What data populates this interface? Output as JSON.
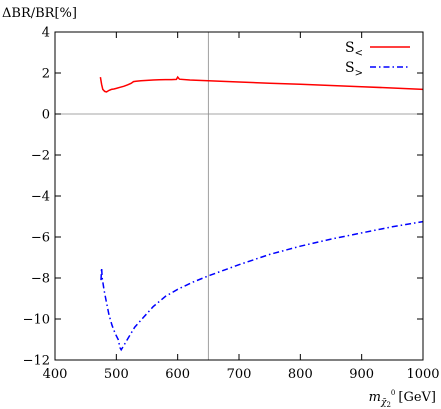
{
  "chart_data": {
    "type": "line",
    "ylabel": "ΔBR/BR[%]",
    "xlabel": {
      "base": "m",
      "sub": "χ̃",
      "subsub": "2",
      "sup": "0",
      "unit": "[GeV]"
    },
    "xlim": [
      400,
      1000
    ],
    "ylim": [
      -12,
      4
    ],
    "xticks": [
      400,
      500,
      600,
      700,
      800,
      900,
      1000
    ],
    "yticks": [
      -12,
      -10,
      -8,
      -6,
      -4,
      -2,
      0,
      2,
      4
    ],
    "xtick_labels": [
      "400",
      "500",
      "600",
      "700",
      "800",
      "900",
      "1000"
    ],
    "ytick_labels": [
      "−12",
      "−10",
      "−8",
      "−6",
      "−4",
      "−2",
      "0",
      "2",
      "4"
    ],
    "reference_lines": {
      "horizontal_y": 0,
      "vertical_x": 650
    },
    "legend_position": "top-right",
    "series": [
      {
        "name": "S<",
        "label_base": "S",
        "label_sub": "<",
        "color": "#ff0000",
        "style": "solid",
        "points": [
          [
            474,
            1.8
          ],
          [
            476,
            1.45
          ],
          [
            478,
            1.2
          ],
          [
            481,
            1.1
          ],
          [
            484,
            1.08
          ],
          [
            488,
            1.15
          ],
          [
            492,
            1.2
          ],
          [
            496,
            1.22
          ],
          [
            500,
            1.25
          ],
          [
            506,
            1.3
          ],
          [
            512,
            1.35
          ],
          [
            518,
            1.42
          ],
          [
            524,
            1.5
          ],
          [
            528,
            1.58
          ],
          [
            532,
            1.6
          ],
          [
            540,
            1.62
          ],
          [
            550,
            1.64
          ],
          [
            560,
            1.66
          ],
          [
            570,
            1.67
          ],
          [
            580,
            1.68
          ],
          [
            590,
            1.68
          ],
          [
            598,
            1.69
          ],
          [
            600,
            1.8
          ],
          [
            603,
            1.7
          ],
          [
            620,
            1.66
          ],
          [
            650,
            1.62
          ],
          [
            700,
            1.56
          ],
          [
            750,
            1.5
          ],
          [
            800,
            1.45
          ],
          [
            850,
            1.39
          ],
          [
            900,
            1.33
          ],
          [
            950,
            1.27
          ],
          [
            1000,
            1.2
          ]
        ]
      },
      {
        "name": "S>",
        "label_base": "S",
        "label_sub": ">",
        "color": "#0000ff",
        "style": "dash-dot",
        "points": [
          [
            475,
            -8.1
          ],
          [
            476,
            -7.5
          ],
          [
            477,
            -8.0
          ],
          [
            480,
            -8.6
          ],
          [
            484,
            -9.2
          ],
          [
            488,
            -9.8
          ],
          [
            493,
            -10.3
          ],
          [
            498,
            -10.7
          ],
          [
            503,
            -11.0
          ],
          [
            506,
            -11.4
          ],
          [
            508,
            -11.5
          ],
          [
            512,
            -11.3
          ],
          [
            520,
            -10.9
          ],
          [
            530,
            -10.4
          ],
          [
            545,
            -9.9
          ],
          [
            560,
            -9.4
          ],
          [
            580,
            -8.9
          ],
          [
            600,
            -8.55
          ],
          [
            625,
            -8.2
          ],
          [
            650,
            -7.9
          ],
          [
            700,
            -7.35
          ],
          [
            750,
            -6.85
          ],
          [
            800,
            -6.45
          ],
          [
            850,
            -6.1
          ],
          [
            900,
            -5.8
          ],
          [
            950,
            -5.5
          ],
          [
            1000,
            -5.25
          ]
        ]
      }
    ]
  }
}
